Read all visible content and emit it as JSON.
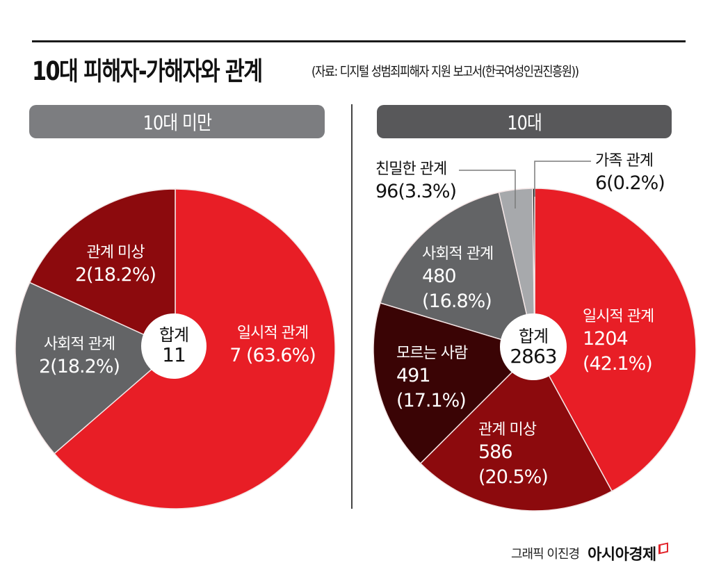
{
  "header": {
    "title": "10대 피해자-가해자와 관계",
    "source": "(자료: 디지털 성범죄피해자 지원 보고서(한국여성인권진흥원))"
  },
  "footer": {
    "credit": "그래픽 이진경",
    "brand": "아시아경제"
  },
  "colors": {
    "temporary": "#e81e26",
    "unknown_relation": "#8c0a0d",
    "social": "#636466",
    "stranger": "#3a0405",
    "intimate": "#a7a9ac",
    "family": "#1a1a1a",
    "hole": "#ffffff"
  },
  "chart_data": [
    {
      "type": "pie",
      "title": "10대 미만",
      "center_label": "합계",
      "total": 11,
      "total_text": "11",
      "slices": [
        {
          "key": "temporary",
          "label": "일시적 관계",
          "value": 7,
          "percent": 63.6,
          "value_text": "7 (63.6%)"
        },
        {
          "key": "social",
          "label": "사회적 관계",
          "value": 2,
          "percent": 18.2,
          "value_text": "2(18.2%)"
        },
        {
          "key": "unknown_relation",
          "label": "관계 미상",
          "value": 2,
          "percent": 18.2,
          "value_text": "2(18.2%)"
        }
      ]
    },
    {
      "type": "pie",
      "title": "10대",
      "center_label": "합계",
      "total": 2863,
      "total_text": "2863",
      "slices": [
        {
          "key": "temporary",
          "label": "일시적 관계",
          "value": 1204,
          "percent": 42.1,
          "value_text": "1204",
          "percent_text": "(42.1%)"
        },
        {
          "key": "unknown_relation",
          "label": "관계 미상",
          "value": 586,
          "percent": 20.5,
          "value_text": "586",
          "percent_text": "(20.5%)"
        },
        {
          "key": "stranger",
          "label": "모르는 사람",
          "value": 491,
          "percent": 17.1,
          "value_text": "491",
          "percent_text": "(17.1%)"
        },
        {
          "key": "social",
          "label": "사회적 관계",
          "value": 480,
          "percent": 16.8,
          "value_text": "480",
          "percent_text": "(16.8%)"
        },
        {
          "key": "intimate",
          "label": "친밀한 관계",
          "value": 96,
          "percent": 3.3,
          "value_text": "96(3.3%)"
        },
        {
          "key": "family",
          "label": "가족 관계",
          "value": 6,
          "percent": 0.2,
          "value_text": "6(0.2%)"
        }
      ]
    }
  ]
}
